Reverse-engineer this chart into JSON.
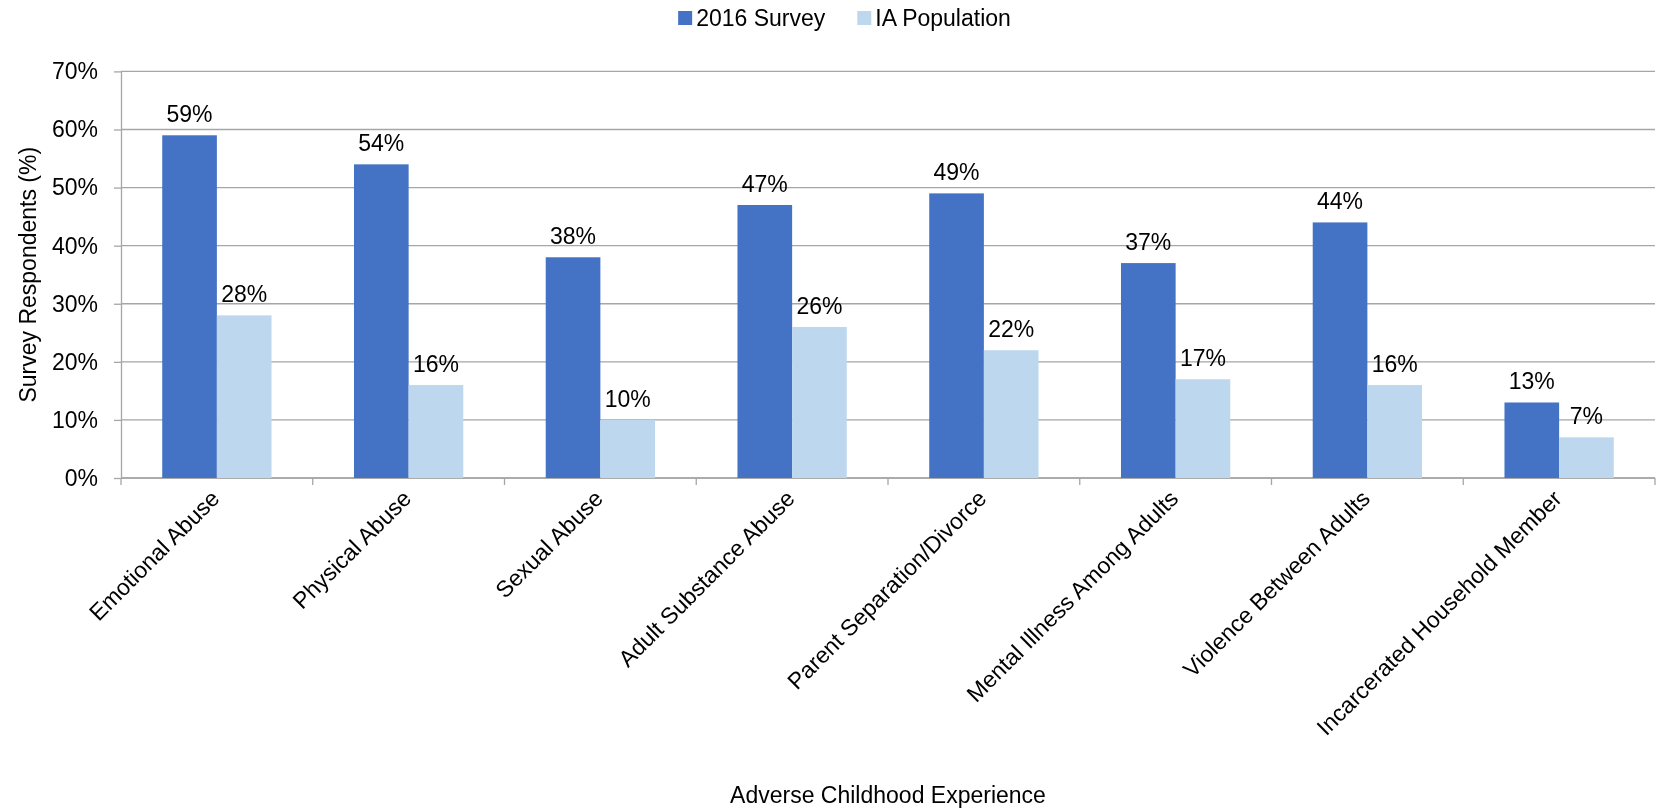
{
  "chart_data": {
    "type": "bar",
    "xlabel": "Adverse Childhood Experience",
    "ylabel": "Survey Respondents (%)",
    "categories": [
      "Emotional Abuse",
      "Physical Abuse",
      "Sexual Abuse",
      "Adult Substance Abuse",
      "Parent Separation/Divorce",
      "Mental Illness Among Adults",
      "Violence Between Adults",
      "Incarcerated Household Member"
    ],
    "series": [
      {
        "name": "2016 Survey",
        "color": "#4472c4",
        "values": [
          59,
          54,
          38,
          47,
          49,
          37,
          44,
          13
        ],
        "value_labels": [
          "59%",
          "54%",
          "38%",
          "47%",
          "49%",
          "37%",
          "44%",
          "13%"
        ]
      },
      {
        "name": "IA Population",
        "color": "#bdd7ee",
        "values": [
          28,
          16,
          10,
          26,
          22,
          17,
          16,
          7
        ],
        "value_labels": [
          "28%",
          "16%",
          "10%",
          "26%",
          "22%",
          "17%",
          "16%",
          "7%"
        ]
      }
    ],
    "ylim": [
      0,
      70
    ],
    "yticks": [
      {
        "value": 0,
        "label": "0%"
      },
      {
        "value": 10,
        "label": "10%"
      },
      {
        "value": 20,
        "label": "20%"
      },
      {
        "value": 30,
        "label": "30%"
      },
      {
        "value": 40,
        "label": "40%"
      },
      {
        "value": 50,
        "label": "50%"
      },
      {
        "value": 60,
        "label": "60%"
      },
      {
        "value": 70,
        "label": "70%"
      }
    ],
    "grid": "y",
    "legend": "top"
  }
}
